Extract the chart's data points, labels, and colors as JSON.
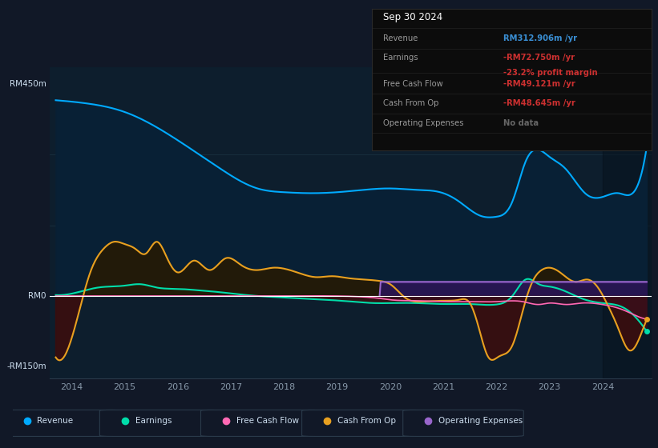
{
  "bg_color": "#111827",
  "chart_bg": "#0d1e2d",
  "grid_color": "#1a3040",
  "zero_line_color": "#ffffff",
  "info_box_bg": "#0a0a0a",
  "info_box_border": "#2a2a2a",
  "title_text": "Sep 30 2024",
  "info_rows": [
    {
      "label": "Revenue",
      "value": "RM312.906m /yr",
      "vcolor": "#4da6ff",
      "label_color": "#999999"
    },
    {
      "label": "Earnings",
      "value": "-RM72.750m /yr",
      "vcolor": "#cc3333",
      "label_color": "#999999"
    },
    {
      "label": "",
      "value": "-23.2% profit margin",
      "vcolor": "#cc3333",
      "label_color": "#999999"
    },
    {
      "label": "Free Cash Flow",
      "value": "-RM49.121m /yr",
      "vcolor": "#cc3333",
      "label_color": "#999999"
    },
    {
      "label": "Cash From Op",
      "value": "-RM48.645m /yr",
      "vcolor": "#cc3333",
      "label_color": "#999999"
    },
    {
      "label": "Operating Expenses",
      "value": "No data",
      "vcolor": "#666666",
      "label_color": "#999999"
    }
  ],
  "rev_color": "#00aaff",
  "earn_color": "#00ddaa",
  "fcf_color": "#ff69b4",
  "cash_color": "#e8a020",
  "opex_color": "#9966cc",
  "rev_fill": "#0a2a45",
  "earn_fill_pos": "#1a4a3a",
  "earn_fill_neg": "#3a1a2a",
  "cash_fill_pos": "#2a1e08",
  "cash_fill_neg": "#3a1208",
  "opex_fill": "#2a1a4a",
  "opex_fill2": "#3a2060",
  "legend_items": [
    {
      "label": "Revenue",
      "color": "#00aaff"
    },
    {
      "label": "Earnings",
      "color": "#00ddaa"
    },
    {
      "label": "Free Cash Flow",
      "color": "#ff69b4"
    },
    {
      "label": "Cash From Op",
      "color": "#e8a020"
    },
    {
      "label": "Operating Expenses",
      "color": "#9966cc"
    }
  ],
  "xlim": [
    2013.58,
    2024.92
  ],
  "ylim": [
    -175,
    485
  ],
  "xticks": [
    2014,
    2015,
    2016,
    2017,
    2018,
    2019,
    2020,
    2021,
    2022,
    2023,
    2024
  ]
}
